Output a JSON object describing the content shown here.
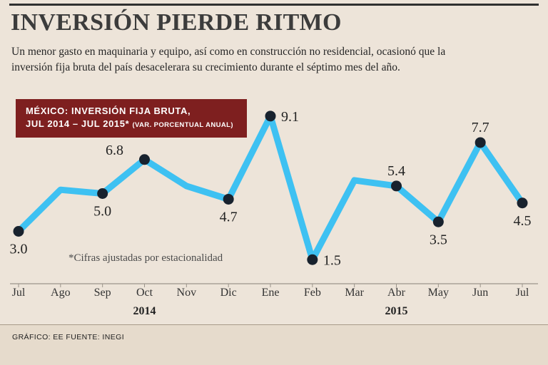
{
  "page": {
    "title": "INVERSIÓN PIERDE RITMO",
    "subtitle_line1": "Un menor gasto en maquinaria y equipo, así como en construcción no residencial, ocasionó que la",
    "subtitle_line2": "inversión fija bruta del país desacelerara su crecimiento durante el séptimo mes del año.",
    "footnote": "*Cifras ajustadas por estacionalidad",
    "credit": "GRÁFICO: EE  FUENTE: INEGI"
  },
  "legend_box": {
    "line1": "MÉXICO: INVERSIÓN FIJA BRUTA,",
    "line2_strong": "JUL 2014 – JUL 2015*",
    "line2_small": "(VAR. PORCENTUAL ANUAL)",
    "bg_color": "#7E1F1F"
  },
  "chart_data": {
    "type": "line",
    "title": "MÉXICO: INVERSIÓN FIJA BRUTA, JUL 2014 – JUL 2015 (VAR. PORCENTUAL ANUAL)",
    "categories": [
      "Jul",
      "Ago",
      "Sep",
      "Oct",
      "Nov",
      "Dic",
      "Ene",
      "Feb",
      "Mar",
      "Abr",
      "May",
      "Jun",
      "Jul"
    ],
    "values": [
      3.0,
      5.2,
      5.0,
      6.8,
      5.4,
      4.7,
      9.1,
      1.5,
      5.7,
      5.4,
      3.5,
      7.7,
      4.5
    ],
    "point_labels": [
      "3.0",
      null,
      "5.0",
      "6.8",
      null,
      "4.7",
      "9.1",
      "1.5",
      null,
      "5.4",
      "3.5",
      "7.7",
      "4.5"
    ],
    "label_positions": [
      "below",
      null,
      "below",
      "above-left",
      null,
      "below",
      "right",
      "right",
      null,
      "above",
      "below",
      "above",
      "below"
    ],
    "estimated_indices": [
      1,
      4,
      8
    ],
    "years": [
      {
        "label": "2014",
        "index": 3
      },
      {
        "label": "2015",
        "index": 9
      }
    ],
    "xlabel": "",
    "ylabel": "Var. porcentual anual",
    "ylim": [
      0,
      10
    ],
    "grid": false,
    "legend_position": "top-left-box",
    "line_color": "#3EC1F2",
    "dot_color": "#18222E"
  }
}
